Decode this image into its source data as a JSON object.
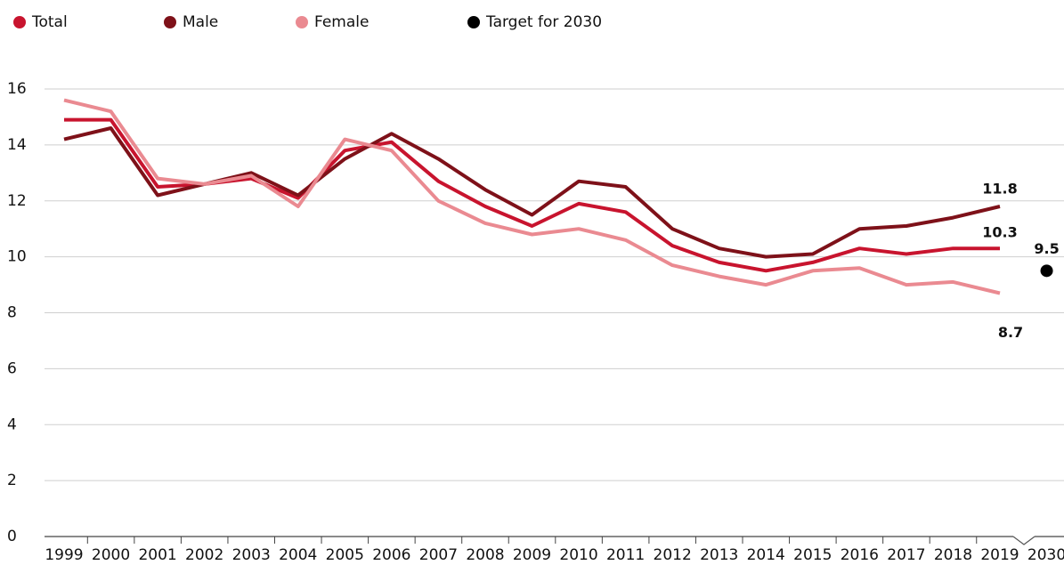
{
  "chart_data": {
    "type": "line",
    "categories": [
      "1999",
      "2000",
      "2001",
      "2002",
      "2003",
      "2004",
      "2005",
      "2006",
      "2007",
      "2008",
      "2009",
      "2010",
      "2011",
      "2012",
      "2013",
      "2014",
      "2015",
      "2016",
      "2017",
      "2018",
      "2019",
      "2030"
    ],
    "series": [
      {
        "name": "Total",
        "color": "#c8142e",
        "values": [
          14.9,
          14.9,
          12.5,
          12.6,
          12.8,
          12.1,
          13.8,
          14.1,
          12.7,
          11.8,
          11.1,
          11.9,
          11.6,
          10.4,
          9.8,
          9.5,
          9.8,
          10.3,
          10.1,
          10.3,
          10.3,
          null
        ]
      },
      {
        "name": "Male",
        "color": "#7e1119",
        "values": [
          14.2,
          14.6,
          12.2,
          12.6,
          13.0,
          12.2,
          13.5,
          14.4,
          13.5,
          12.4,
          11.5,
          12.7,
          12.5,
          11.0,
          10.3,
          10.0,
          10.1,
          11.0,
          11.1,
          11.4,
          11.8,
          null
        ]
      },
      {
        "name": "Female",
        "color": "#ea8a91",
        "values": [
          15.6,
          15.2,
          12.8,
          12.6,
          12.9,
          11.8,
          14.2,
          13.8,
          12.0,
          11.2,
          10.8,
          11.0,
          10.6,
          9.7,
          9.3,
          9.0,
          9.5,
          9.6,
          9.0,
          9.1,
          8.7,
          null
        ]
      },
      {
        "name": "Target for 2030",
        "color": "#000000",
        "values": [
          null,
          null,
          null,
          null,
          null,
          null,
          null,
          null,
          null,
          null,
          null,
          null,
          null,
          null,
          null,
          null,
          null,
          null,
          null,
          null,
          null,
          9.5
        ]
      }
    ],
    "ylim": [
      0,
      16
    ],
    "yticks": [
      0,
      2,
      4,
      6,
      8,
      10,
      12,
      14,
      16
    ],
    "grid": true
  }
}
